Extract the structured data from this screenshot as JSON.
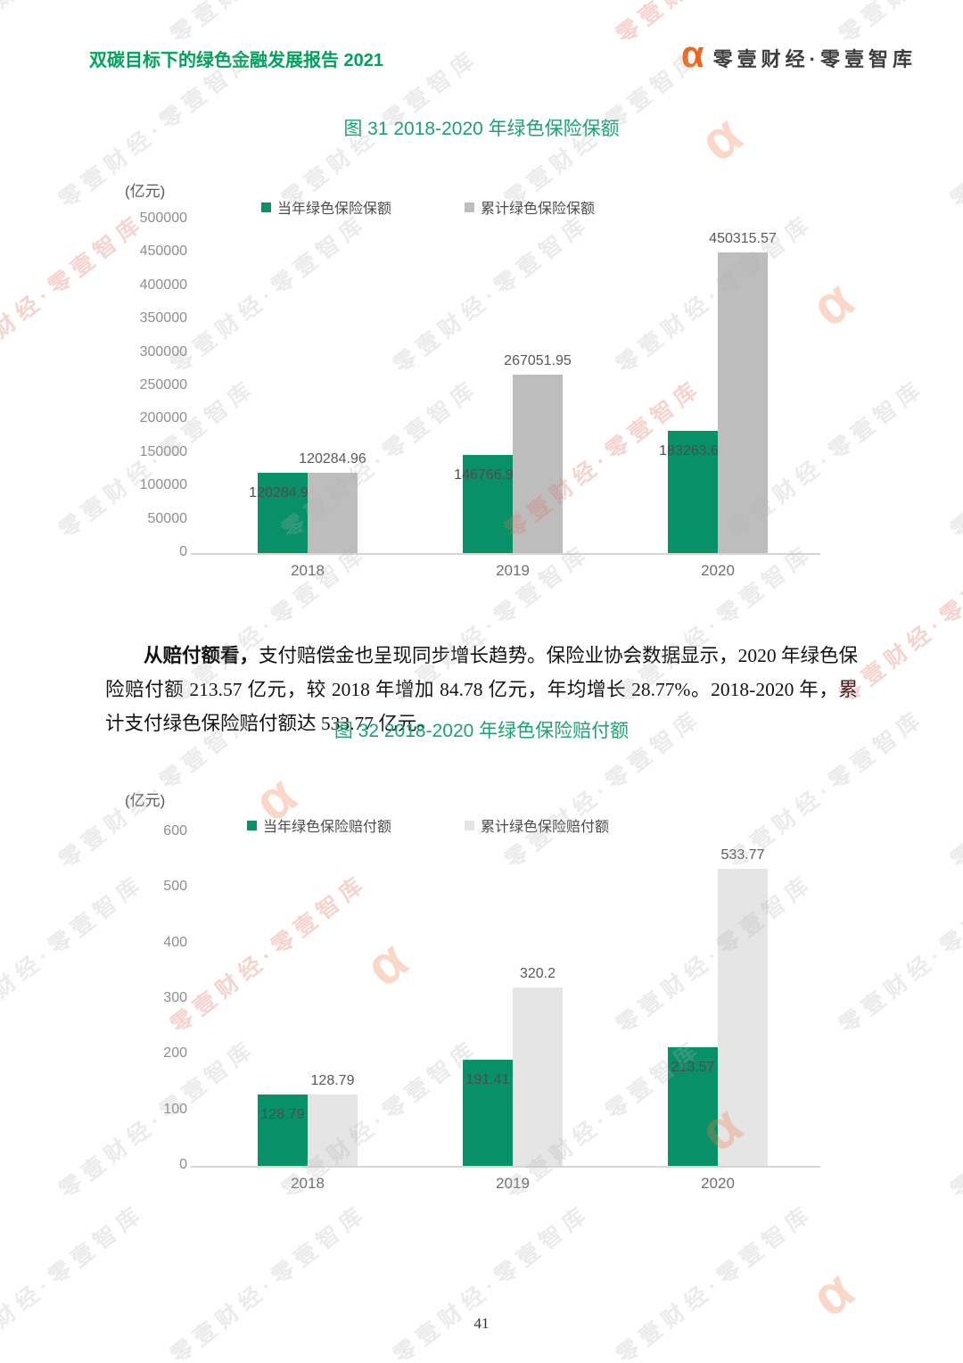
{
  "page": {
    "header": {
      "report_title": "双碳目标下的绿色金融发展报告 2021",
      "brand_name": "零壹财经·零壹智库",
      "brand_logo_glyph": "α"
    },
    "watermark": {
      "text": "零壹财经·零壹智库",
      "logo_glyph": "α"
    },
    "footer": {
      "page_number": "41"
    }
  },
  "paragraph": {
    "lead_bold": "从赔付额看，",
    "body": "支付赔偿金也呈现同步增长趋势。保险业协会数据显示，2020 年绿色保险赔付额 213.57 亿元，较 2018 年增加 84.78 亿元，年均增长 28.77%。2018-2020 年，累计支付绿色保险赔付额达 533.77 亿元。"
  },
  "chart_data": [
    {
      "type": "bar",
      "title": "图 31 2018-2020 年绿色保险保额",
      "unit_label": "(亿元)",
      "categories": [
        "2018",
        "2019",
        "2020"
      ],
      "series": [
        {
          "name": "当年绿色保险保额",
          "color": "#089168",
          "label_position": "inside",
          "values": [
            120284.96,
            146766.99,
            183263.62
          ]
        },
        {
          "name": "累计绿色保险保额",
          "color": "#bdbdbd",
          "label_position": "above",
          "values": [
            120284.96,
            267051.95,
            450315.57
          ]
        }
      ],
      "ylim": [
        0,
        500000
      ],
      "yticks": [
        "500000",
        "450000",
        "400000",
        "350000",
        "300000",
        "250000",
        "200000",
        "150000",
        "100000",
        "50000",
        "0"
      ],
      "xlabel": "",
      "ylabel": "(亿元)",
      "grid": false,
      "legend_position": "top"
    },
    {
      "type": "bar",
      "title": "图 32 2018-2020 年绿色保险赔付额",
      "unit_label": "(亿元)",
      "categories": [
        "2018",
        "2019",
        "2020"
      ],
      "series": [
        {
          "name": "当年绿色保险赔付额",
          "color": "#089168",
          "label_position": "inside",
          "values": [
            128.79,
            191.41,
            213.57
          ]
        },
        {
          "name": "累计绿色保险赔付额",
          "color": "#e5e5e5",
          "label_position": "above",
          "values": [
            128.79,
            320.2,
            533.77
          ]
        }
      ],
      "ylim": [
        0,
        600
      ],
      "yticks": [
        "600",
        "500",
        "400",
        "300",
        "200",
        "100",
        "0"
      ],
      "xlabel": "",
      "ylabel": "(亿元)",
      "grid": false,
      "legend_position": "top"
    }
  ]
}
